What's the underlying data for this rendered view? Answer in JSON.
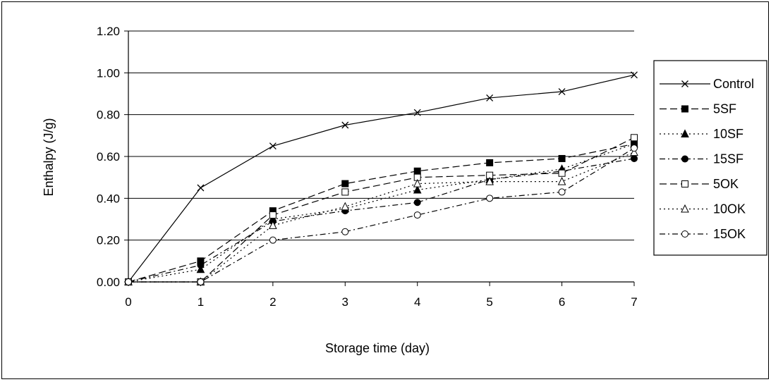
{
  "chart_data": {
    "type": "line",
    "title": "",
    "xlabel": "Storage time (day)",
    "ylabel": "Enthalpy (J/g)",
    "x": [
      0,
      1,
      2,
      3,
      4,
      5,
      6,
      7
    ],
    "xlim": [
      0,
      7
    ],
    "ylim": [
      0,
      1.2
    ],
    "yticks": [
      "0.00",
      "0.20",
      "0.40",
      "0.60",
      "0.80",
      "1.00",
      "1.20"
    ],
    "xticks": [
      "0",
      "1",
      "2",
      "3",
      "4",
      "5",
      "6",
      "7"
    ],
    "grid": "horizontal",
    "legend_position": "right",
    "series": [
      {
        "name": "Control",
        "values": [
          0.0,
          0.45,
          0.65,
          0.75,
          0.81,
          0.88,
          0.91,
          0.99
        ],
        "marker": "x",
        "dash": "solid"
      },
      {
        "name": "5SF",
        "values": [
          0.0,
          0.1,
          0.34,
          0.47,
          0.53,
          0.57,
          0.59,
          0.66
        ],
        "marker": "square-filled",
        "dash": "dashed"
      },
      {
        "name": "10SF",
        "values": [
          0.0,
          0.06,
          0.3,
          0.35,
          0.44,
          0.49,
          0.54,
          0.66
        ],
        "marker": "triangle-filled",
        "dash": "dotted"
      },
      {
        "name": "15SF",
        "values": [
          0.0,
          0.08,
          0.29,
          0.34,
          0.38,
          0.49,
          0.53,
          0.59
        ],
        "marker": "circle-filled",
        "dash": "dashdot"
      },
      {
        "name": "5OK",
        "values": [
          0.0,
          0.0,
          0.32,
          0.43,
          0.5,
          0.51,
          0.52,
          0.69
        ],
        "marker": "square-open",
        "dash": "dashed"
      },
      {
        "name": "10OK",
        "values": [
          0.0,
          0.0,
          0.27,
          0.36,
          0.47,
          0.48,
          0.48,
          0.62
        ],
        "marker": "triangle-open",
        "dash": "dotted"
      },
      {
        "name": "15OK",
        "values": [
          0.0,
          0.0,
          0.2,
          0.24,
          0.32,
          0.4,
          0.43,
          0.64
        ],
        "marker": "circle-open",
        "dash": "dashdot"
      }
    ]
  }
}
